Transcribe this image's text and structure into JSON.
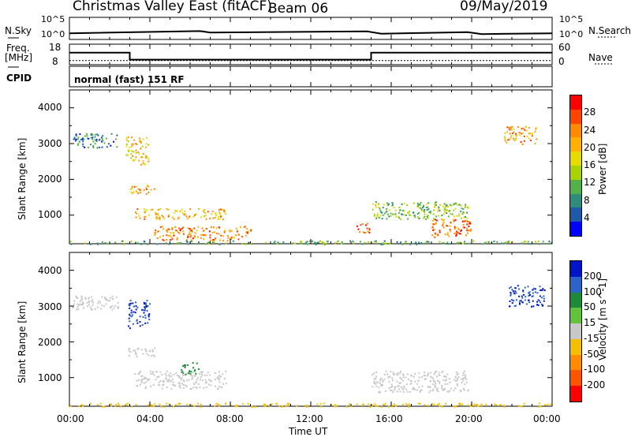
{
  "header": {
    "station": "Christmas Valley East (fitACF)",
    "beam": "Beam 06",
    "date": "09/May/2019"
  },
  "noise_panel": {
    "left_label": "N.Sky",
    "left_ticks": [
      "10^5",
      "10^0"
    ],
    "right_label": "N.Search",
    "right_ticks": [
      "10^5",
      "10^0"
    ]
  },
  "freq_panel": {
    "left_label": "Freq.",
    "left_unit": "[MHz]",
    "left_ticks": [
      "18",
      "8"
    ],
    "right_label": "Nave",
    "right_ticks": [
      "60",
      "0"
    ]
  },
  "cpid": {
    "label": "CPID",
    "mode": "normal (fast) 151 RF"
  },
  "x_axis": {
    "ticks": [
      "00:00",
      "04:00",
      "08:00",
      "12:00",
      "16:00",
      "20:00",
      "00:00"
    ],
    "label": "Time UT",
    "range_hours": [
      0,
      24
    ]
  },
  "power_panel": {
    "ylabel": "Slant Range [km]",
    "yticks": [
      "4000",
      "3000",
      "2000",
      "1000"
    ],
    "colorbar_label": "Power [dB]",
    "colorbar_ticks": [
      "28",
      "24",
      "20",
      "16",
      "12",
      "8",
      "4"
    ],
    "colors": [
      "#ff0000",
      "#ff4400",
      "#ff8a00",
      "#ffb000",
      "#e6dc00",
      "#a8d200",
      "#54b04a",
      "#2f8c7a",
      "#1f5aa8",
      "#0000ff"
    ]
  },
  "velocity_panel": {
    "ylabel": "Slant Range [km]",
    "yticks": [
      "4000",
      "3000",
      "2000",
      "1000"
    ],
    "colorbar_label": "Velocity [m s^-1]",
    "colorbar_ticks": [
      "200",
      "100",
      "50",
      "15",
      "-15",
      "-50",
      "-100",
      "-200"
    ],
    "colors": [
      "#0014c8",
      "#2a64c8",
      "#1d8a3a",
      "#62c23a",
      "#c8c8c8",
      "#f2c000",
      "#ff8c00",
      "#ff5500",
      "#ff0000"
    ]
  },
  "chart_data": {
    "type": "heatmap",
    "x_range_hours": [
      0,
      24
    ],
    "y_range_km": [
      200,
      4500
    ],
    "noise_sky": [
      [
        0,
        1.2
      ],
      [
        6.5,
        1.8
      ],
      [
        7,
        1.4
      ],
      [
        14.8,
        1.7
      ],
      [
        15.5,
        1.1
      ],
      [
        19.8,
        1.5
      ],
      [
        20.5,
        1.0
      ],
      [
        24,
        1.2
      ]
    ],
    "frequency_mhz": [
      [
        0,
        14
      ],
      [
        3,
        14
      ],
      [
        3,
        10
      ],
      [
        15,
        10
      ],
      [
        15,
        14
      ],
      [
        24,
        14
      ]
    ],
    "nave": [
      [
        0,
        12
      ],
      [
        24,
        12
      ]
    ],
    "power_echoes": [
      {
        "t0": 0.1,
        "t1": 2.4,
        "r0": 2900,
        "r1": 3300,
        "db": 8
      },
      {
        "t0": 2.8,
        "t1": 3.9,
        "r0": 2400,
        "r1": 3200,
        "db": 20
      },
      {
        "t0": 2.9,
        "t1": 4.3,
        "r0": 1600,
        "r1": 1850,
        "db": 22
      },
      {
        "t0": 3.2,
        "t1": 7.8,
        "r0": 900,
        "r1": 1200,
        "db": 22
      },
      {
        "t0": 4.2,
        "t1": 9.0,
        "r0": 300,
        "r1": 700,
        "db": 24
      },
      {
        "t0": 0.0,
        "t1": 24.0,
        "r0": 200,
        "r1": 300,
        "db": 12
      },
      {
        "t0": 14.2,
        "t1": 14.9,
        "r0": 500,
        "r1": 800,
        "db": 26
      },
      {
        "t0": 15.0,
        "t1": 19.8,
        "r0": 900,
        "r1": 1400,
        "db": 14
      },
      {
        "t0": 18.0,
        "t1": 20.0,
        "r0": 400,
        "r1": 900,
        "db": 26
      },
      {
        "t0": 21.6,
        "t1": 23.2,
        "r0": 3000,
        "r1": 3500,
        "db": 22
      }
    ],
    "velocity_echoes": [
      {
        "t0": 0.1,
        "t1": 2.4,
        "r0": 2900,
        "r1": 3300,
        "v": 0
      },
      {
        "t0": 2.9,
        "t1": 4.0,
        "r0": 2400,
        "r1": 3200,
        "v": 200
      },
      {
        "t0": 2.9,
        "t1": 4.3,
        "r0": 1600,
        "r1": 1850,
        "v": 0
      },
      {
        "t0": 5.5,
        "t1": 6.4,
        "r0": 1100,
        "r1": 1450,
        "v": 60
      },
      {
        "t0": 3.2,
        "t1": 7.8,
        "r0": 700,
        "r1": 1200,
        "v": 0
      },
      {
        "t0": 0.0,
        "t1": 24.0,
        "r0": 200,
        "r1": 300,
        "v": -30
      },
      {
        "t0": 15.0,
        "t1": 19.8,
        "r0": 600,
        "r1": 1200,
        "v": 0
      },
      {
        "t0": 21.8,
        "t1": 23.6,
        "r0": 3000,
        "r1": 3600,
        "v": 200
      }
    ]
  }
}
